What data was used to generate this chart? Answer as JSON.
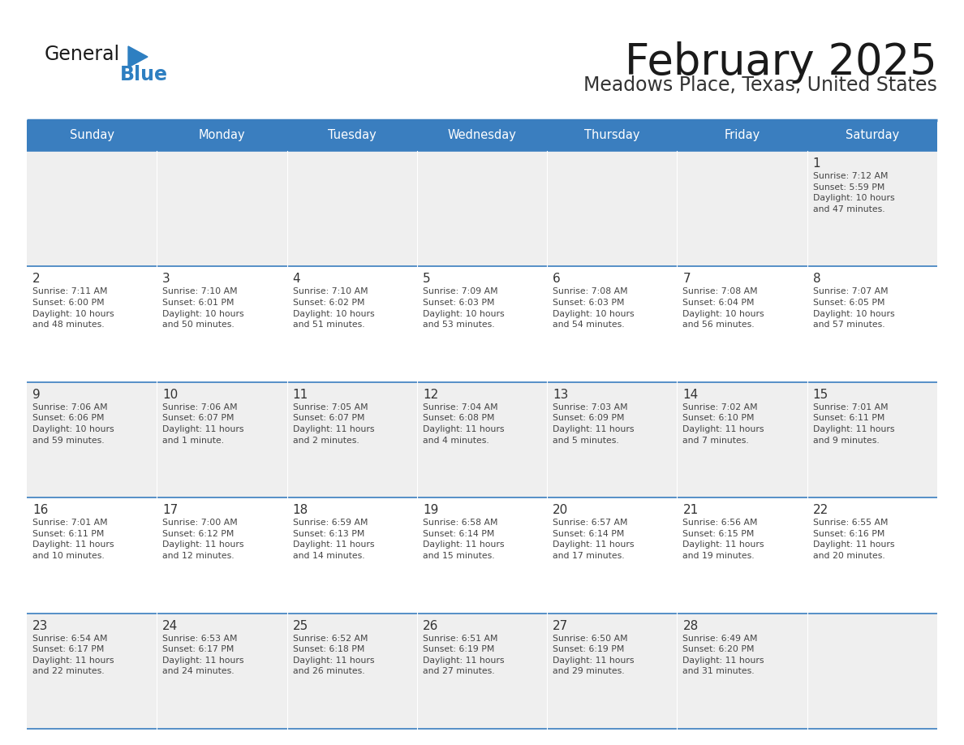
{
  "title": "February 2025",
  "subtitle": "Meadows Place, Texas, United States",
  "header_bg": "#3a7ebf",
  "header_text_color": "#ffffff",
  "cell_bg_odd": "#efefef",
  "cell_bg_even": "#ffffff",
  "day_number_color": "#333333",
  "text_color": "#444444",
  "border_color": "#3a7ebf",
  "logo_general_color": "#1a1a1a",
  "logo_blue_color": "#2e7fc1",
  "logo_triangle_color": "#2e7fc1",
  "days_of_week": [
    "Sunday",
    "Monday",
    "Tuesday",
    "Wednesday",
    "Thursday",
    "Friday",
    "Saturday"
  ],
  "weeks": [
    [
      {
        "day": null,
        "info": null
      },
      {
        "day": null,
        "info": null
      },
      {
        "day": null,
        "info": null
      },
      {
        "day": null,
        "info": null
      },
      {
        "day": null,
        "info": null
      },
      {
        "day": null,
        "info": null
      },
      {
        "day": 1,
        "info": "Sunrise: 7:12 AM\nSunset: 5:59 PM\nDaylight: 10 hours\nand 47 minutes."
      }
    ],
    [
      {
        "day": 2,
        "info": "Sunrise: 7:11 AM\nSunset: 6:00 PM\nDaylight: 10 hours\nand 48 minutes."
      },
      {
        "day": 3,
        "info": "Sunrise: 7:10 AM\nSunset: 6:01 PM\nDaylight: 10 hours\nand 50 minutes."
      },
      {
        "day": 4,
        "info": "Sunrise: 7:10 AM\nSunset: 6:02 PM\nDaylight: 10 hours\nand 51 minutes."
      },
      {
        "day": 5,
        "info": "Sunrise: 7:09 AM\nSunset: 6:03 PM\nDaylight: 10 hours\nand 53 minutes."
      },
      {
        "day": 6,
        "info": "Sunrise: 7:08 AM\nSunset: 6:03 PM\nDaylight: 10 hours\nand 54 minutes."
      },
      {
        "day": 7,
        "info": "Sunrise: 7:08 AM\nSunset: 6:04 PM\nDaylight: 10 hours\nand 56 minutes."
      },
      {
        "day": 8,
        "info": "Sunrise: 7:07 AM\nSunset: 6:05 PM\nDaylight: 10 hours\nand 57 minutes."
      }
    ],
    [
      {
        "day": 9,
        "info": "Sunrise: 7:06 AM\nSunset: 6:06 PM\nDaylight: 10 hours\nand 59 minutes."
      },
      {
        "day": 10,
        "info": "Sunrise: 7:06 AM\nSunset: 6:07 PM\nDaylight: 11 hours\nand 1 minute."
      },
      {
        "day": 11,
        "info": "Sunrise: 7:05 AM\nSunset: 6:07 PM\nDaylight: 11 hours\nand 2 minutes."
      },
      {
        "day": 12,
        "info": "Sunrise: 7:04 AM\nSunset: 6:08 PM\nDaylight: 11 hours\nand 4 minutes."
      },
      {
        "day": 13,
        "info": "Sunrise: 7:03 AM\nSunset: 6:09 PM\nDaylight: 11 hours\nand 5 minutes."
      },
      {
        "day": 14,
        "info": "Sunrise: 7:02 AM\nSunset: 6:10 PM\nDaylight: 11 hours\nand 7 minutes."
      },
      {
        "day": 15,
        "info": "Sunrise: 7:01 AM\nSunset: 6:11 PM\nDaylight: 11 hours\nand 9 minutes."
      }
    ],
    [
      {
        "day": 16,
        "info": "Sunrise: 7:01 AM\nSunset: 6:11 PM\nDaylight: 11 hours\nand 10 minutes."
      },
      {
        "day": 17,
        "info": "Sunrise: 7:00 AM\nSunset: 6:12 PM\nDaylight: 11 hours\nand 12 minutes."
      },
      {
        "day": 18,
        "info": "Sunrise: 6:59 AM\nSunset: 6:13 PM\nDaylight: 11 hours\nand 14 minutes."
      },
      {
        "day": 19,
        "info": "Sunrise: 6:58 AM\nSunset: 6:14 PM\nDaylight: 11 hours\nand 15 minutes."
      },
      {
        "day": 20,
        "info": "Sunrise: 6:57 AM\nSunset: 6:14 PM\nDaylight: 11 hours\nand 17 minutes."
      },
      {
        "day": 21,
        "info": "Sunrise: 6:56 AM\nSunset: 6:15 PM\nDaylight: 11 hours\nand 19 minutes."
      },
      {
        "day": 22,
        "info": "Sunrise: 6:55 AM\nSunset: 6:16 PM\nDaylight: 11 hours\nand 20 minutes."
      }
    ],
    [
      {
        "day": 23,
        "info": "Sunrise: 6:54 AM\nSunset: 6:17 PM\nDaylight: 11 hours\nand 22 minutes."
      },
      {
        "day": 24,
        "info": "Sunrise: 6:53 AM\nSunset: 6:17 PM\nDaylight: 11 hours\nand 24 minutes."
      },
      {
        "day": 25,
        "info": "Sunrise: 6:52 AM\nSunset: 6:18 PM\nDaylight: 11 hours\nand 26 minutes."
      },
      {
        "day": 26,
        "info": "Sunrise: 6:51 AM\nSunset: 6:19 PM\nDaylight: 11 hours\nand 27 minutes."
      },
      {
        "day": 27,
        "info": "Sunrise: 6:50 AM\nSunset: 6:19 PM\nDaylight: 11 hours\nand 29 minutes."
      },
      {
        "day": 28,
        "info": "Sunrise: 6:49 AM\nSunset: 6:20 PM\nDaylight: 11 hours\nand 31 minutes."
      },
      {
        "day": null,
        "info": null
      }
    ]
  ]
}
